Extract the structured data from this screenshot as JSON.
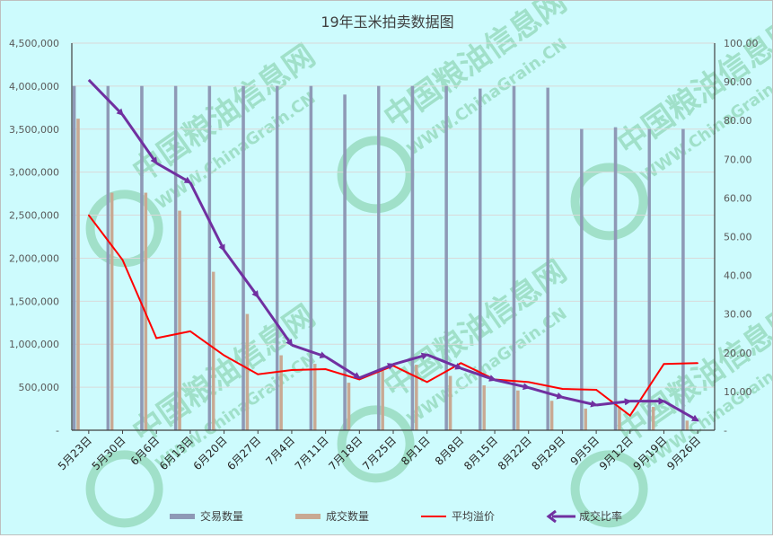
{
  "chart_data": {
    "type": "bar",
    "title": "19年玉米拍卖数据图",
    "categories": [
      "5月23日",
      "5月30日",
      "6月6日",
      "6月13日",
      "6月20日",
      "6月27日",
      "7月4日",
      "7月11日",
      "7月18日",
      "7月25日",
      "8月1日",
      "8月8日",
      "8月15日",
      "8月22日",
      "8月29日",
      "9月5日",
      "9月12日",
      "9月19日",
      "9月26日"
    ],
    "y_left": {
      "ylim": [
        0,
        4500000
      ],
      "ticks": [
        "-",
        "500,000",
        "1,000,000",
        "1,500,000",
        "2,000,000",
        "2,500,000",
        "3,000,000",
        "3,500,000",
        "4,000,000",
        "4,500,000"
      ],
      "tick_values": [
        0,
        500000,
        1000000,
        1500000,
        2000000,
        2500000,
        3000000,
        3500000,
        4000000,
        4500000
      ]
    },
    "y_right": {
      "ylim": [
        0,
        100
      ],
      "ticks": [
        "-",
        "10.00",
        "20.00",
        "30.00",
        "40.00",
        "50.00",
        "60.00",
        "70.00",
        "80.00",
        "90.00",
        "100.00"
      ],
      "tick_values": [
        0,
        10,
        20,
        30,
        40,
        50,
        60,
        70,
        80,
        90,
        100
      ]
    },
    "gridlines": true,
    "legend_position": "bottom",
    "series": [
      {
        "name": "交易数量",
        "kind": "bar",
        "axis": "left",
        "color": "#8e99b6",
        "values": [
          4000000,
          4000000,
          4000000,
          4000000,
          4000000,
          4000000,
          4000000,
          4000000,
          3900000,
          4000000,
          4000000,
          4000000,
          3970000,
          4000000,
          3980000,
          3500000,
          3520000,
          3500000,
          3500000
        ]
      },
      {
        "name": "成交数量",
        "kind": "bar",
        "axis": "left",
        "color": "#c8a993",
        "values": [
          3620000,
          2760000,
          2760000,
          2550000,
          1840000,
          1350000,
          870000,
          770000,
          550000,
          690000,
          760000,
          630000,
          520000,
          460000,
          340000,
          250000,
          270000,
          270000,
          110000
        ]
      },
      {
        "name": "平均溢价",
        "kind": "line",
        "axis": "left",
        "color": "#ff0000",
        "values": [
          2500000,
          1980000,
          1070000,
          1150000,
          870000,
          650000,
          700000,
          710000,
          590000,
          750000,
          560000,
          780000,
          590000,
          560000,
          480000,
          470000,
          170000,
          770000,
          780000
        ]
      },
      {
        "name": "成交比率",
        "kind": "line-arrow",
        "axis": "right",
        "color": "#7030a0",
        "values": [
          90.5,
          81.5,
          69,
          64,
          46.5,
          34.5,
          22,
          19,
          13.5,
          17,
          19.5,
          16,
          13,
          11,
          8.5,
          6.5,
          7.5,
          7.5,
          2.5
        ]
      }
    ]
  },
  "watermark": {
    "cn": "中国粮油信息网",
    "en": "WWW.ChinaGrain.CN"
  }
}
